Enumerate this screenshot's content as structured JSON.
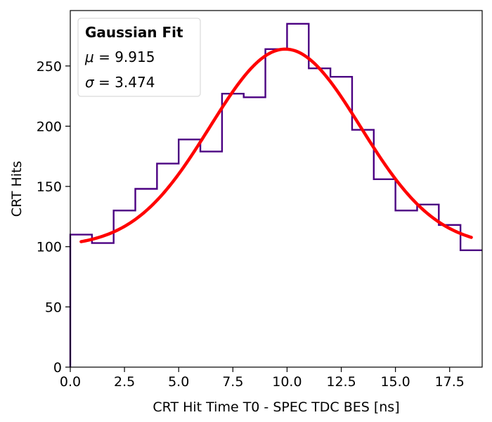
{
  "chart_data": {
    "type": "histogram",
    "xlabel": "CRT Hit Time T0 - SPEC TDC BES [ns]",
    "ylabel": "CRT Hits",
    "xlim": [
      0,
      19
    ],
    "ylim": [
      0,
      296
    ],
    "x_ticks": [
      "0.0",
      "2.5",
      "5.0",
      "7.5",
      "10.0",
      "12.5",
      "15.0",
      "17.5"
    ],
    "y_ticks": [
      "0",
      "50",
      "100",
      "150",
      "200",
      "250"
    ],
    "bin_edges": [
      0,
      1,
      2,
      3,
      4,
      5,
      6,
      7,
      8,
      9,
      10,
      11,
      12,
      13,
      14,
      15,
      16,
      17,
      18,
      19
    ],
    "bin_counts": [
      110,
      103,
      130,
      148,
      169,
      189,
      179,
      227,
      224,
      264,
      285,
      248,
      241,
      197,
      156,
      130,
      135,
      118,
      97
    ],
    "histogram_color": "#4b0082",
    "fit": {
      "type": "gaussian",
      "x_range": [
        0.5,
        18.5
      ],
      "amplitude": 164,
      "baseline": 100,
      "mu": 9.915,
      "sigma": 3.474,
      "color": "#ff0000"
    },
    "legend": {
      "title": "Gaussian Fit",
      "mu_symbol": "μ",
      "mu_text": " = 9.915",
      "sigma_symbol": "σ",
      "sigma_text": " = 3.474",
      "position": "top-left"
    },
    "grid": false
  }
}
